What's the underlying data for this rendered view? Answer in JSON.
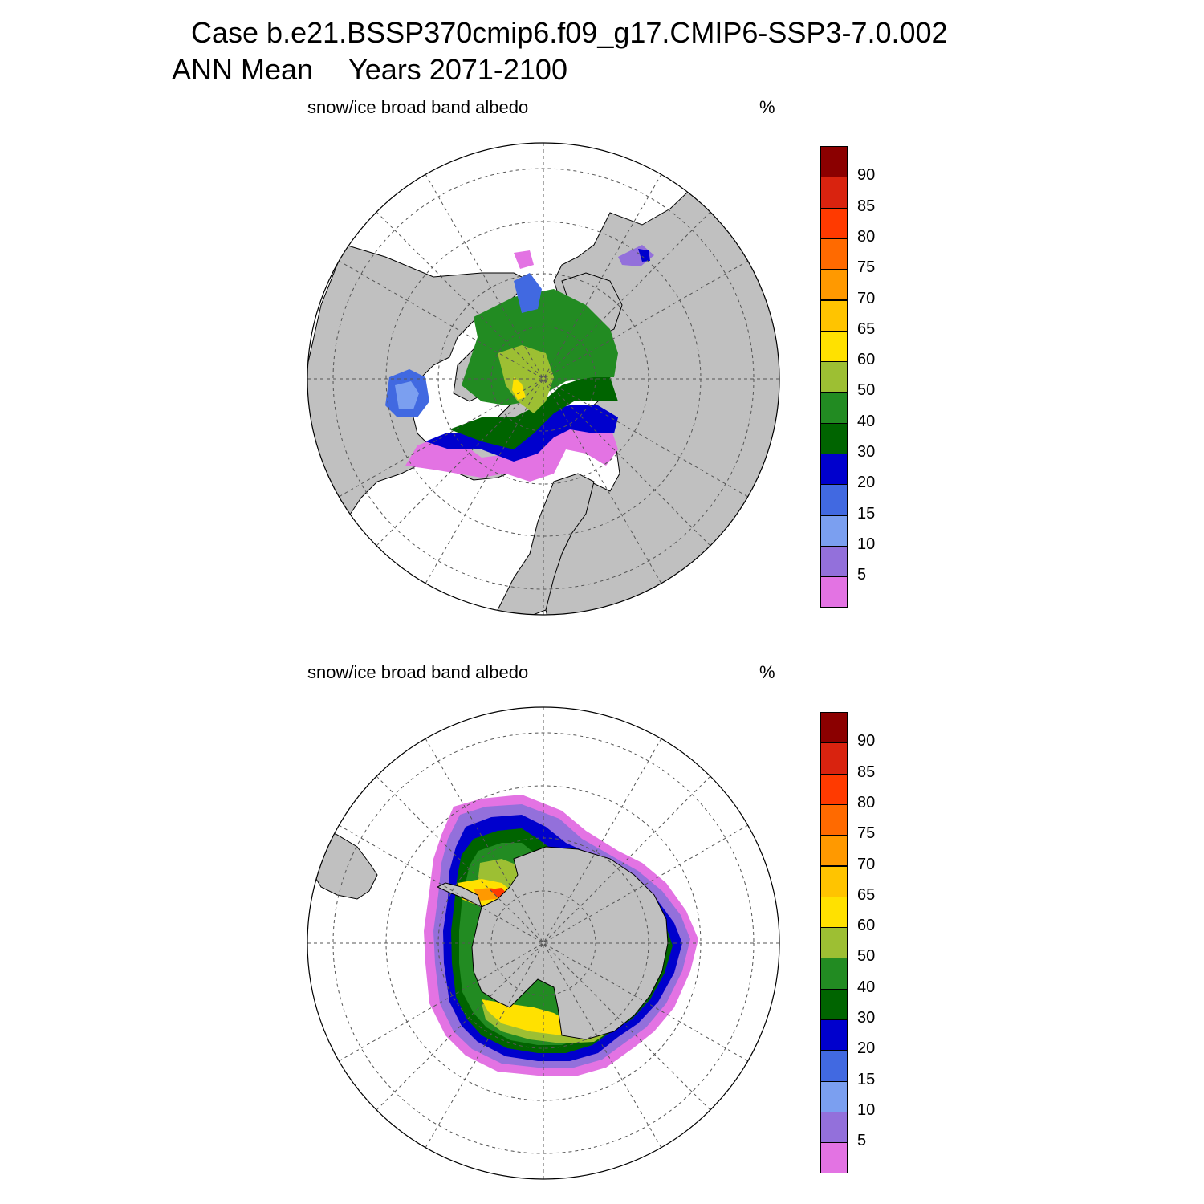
{
  "header": {
    "case_line": "Case b.e21.BSSP370cmip6.f09_g17.CMIP6-SSP3-7.0.002",
    "season": "ANN Mean",
    "years": "Years 2071-2100"
  },
  "panels": [
    {
      "variable": "snow/ice broad band albedo",
      "units": "%",
      "hemisphere": "north"
    },
    {
      "variable": "snow/ice broad band albedo",
      "units": "%",
      "hemisphere": "south"
    }
  ],
  "colorbar": {
    "labels": [
      "90",
      "85",
      "80",
      "75",
      "70",
      "65",
      "60",
      "50",
      "40",
      "30",
      "20",
      "15",
      "10",
      "5"
    ],
    "colors": [
      "#8b0000",
      "#d9230f",
      "#ff3a00",
      "#ff6a00",
      "#ff9900",
      "#ffc400",
      "#ffe100",
      "#9dbf33",
      "#228b22",
      "#006400",
      "#0000cd",
      "#4169e1",
      "#7b9ff0",
      "#9370db",
      "#e373e3"
    ]
  },
  "map_style": {
    "land": "#c0c0c0",
    "ocean": "#ffffff",
    "grid": "dashed"
  }
}
